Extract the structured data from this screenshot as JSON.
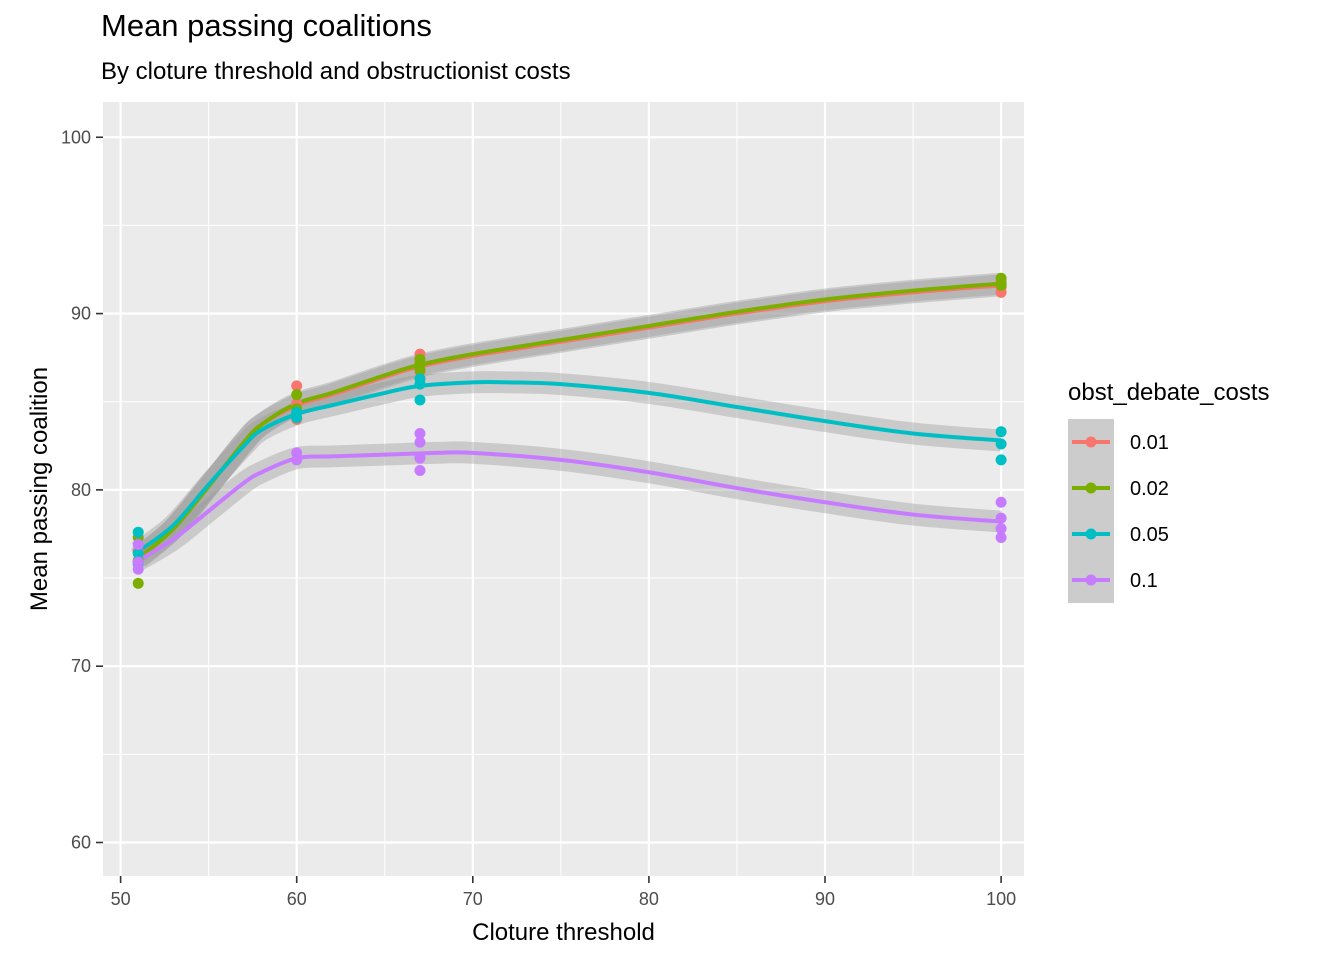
{
  "chart_data": {
    "type": "scatter",
    "title": "Mean passing coalitions",
    "subtitle": "By cloture threshold and obstructionist costs",
    "xlabel": "Cloture threshold",
    "ylabel": "Mean passing coalition",
    "xlim": [
      49,
      101.3
    ],
    "ylim": [
      58.1,
      102
    ],
    "xticks": [
      50,
      60,
      70,
      80,
      90,
      100
    ],
    "yticks": [
      60,
      70,
      80,
      90,
      100
    ],
    "grid": true,
    "legend": {
      "title": "obst_debate_costs",
      "position": "right"
    },
    "series": [
      {
        "name": "0.01",
        "color": "#F8766D",
        "points": [
          [
            51,
            76.5
          ],
          [
            51,
            75.9
          ],
          [
            60,
            85.9
          ],
          [
            60,
            84.0
          ],
          [
            60,
            84.9
          ],
          [
            67,
            87.7
          ],
          [
            67,
            86.7
          ],
          [
            67,
            87.2
          ],
          [
            100,
            91.2
          ],
          [
            100,
            91.8
          ],
          [
            100,
            91.5
          ]
        ],
        "smooth": [
          [
            51,
            76.2
          ],
          [
            53,
            77.8
          ],
          [
            55,
            80.2
          ],
          [
            57,
            82.7
          ],
          [
            58,
            83.7
          ],
          [
            60,
            84.8
          ],
          [
            62,
            85.4
          ],
          [
            65,
            86.4
          ],
          [
            67,
            87.0
          ],
          [
            70,
            87.6
          ],
          [
            75,
            88.4
          ],
          [
            80,
            89.2
          ],
          [
            85,
            90.0
          ],
          [
            90,
            90.7
          ],
          [
            95,
            91.2
          ],
          [
            100,
            91.6
          ]
        ]
      },
      {
        "name": "0.02",
        "color": "#7CAE00",
        "points": [
          [
            51,
            74.7
          ],
          [
            51,
            77.3
          ],
          [
            51,
            76.0
          ],
          [
            60,
            85.4
          ],
          [
            60,
            84.6
          ],
          [
            67,
            87.4
          ],
          [
            67,
            86.8
          ],
          [
            67,
            87.1
          ],
          [
            100,
            92.0
          ],
          [
            100,
            91.6
          ],
          [
            100,
            91.7
          ]
        ],
        "smooth": [
          [
            51,
            76.1
          ],
          [
            53,
            77.8
          ],
          [
            55,
            80.2
          ],
          [
            57,
            82.7
          ],
          [
            58,
            83.7
          ],
          [
            60,
            84.9
          ],
          [
            62,
            85.5
          ],
          [
            65,
            86.5
          ],
          [
            67,
            87.1
          ],
          [
            70,
            87.7
          ],
          [
            75,
            88.5
          ],
          [
            80,
            89.3
          ],
          [
            85,
            90.1
          ],
          [
            90,
            90.8
          ],
          [
            95,
            91.3
          ],
          [
            100,
            91.7
          ]
        ]
      },
      {
        "name": "0.05",
        "color": "#00BFC4",
        "points": [
          [
            51,
            77.6
          ],
          [
            51,
            76.4
          ],
          [
            51,
            75.8
          ],
          [
            60,
            84.1
          ],
          [
            60,
            84.4
          ],
          [
            67,
            85.1
          ],
          [
            67,
            86.0
          ],
          [
            67,
            86.3
          ],
          [
            100,
            83.3
          ],
          [
            100,
            82.6
          ],
          [
            100,
            81.7
          ]
        ],
        "smooth": [
          [
            51,
            76.5
          ],
          [
            53,
            78.0
          ],
          [
            55,
            80.3
          ],
          [
            57,
            82.5
          ],
          [
            58,
            83.4
          ],
          [
            60,
            84.3
          ],
          [
            62,
            84.8
          ],
          [
            65,
            85.5
          ],
          [
            67,
            85.9
          ],
          [
            70,
            86.1
          ],
          [
            72,
            86.1
          ],
          [
            75,
            86.0
          ],
          [
            80,
            85.5
          ],
          [
            85,
            84.7
          ],
          [
            90,
            83.9
          ],
          [
            95,
            83.2
          ],
          [
            100,
            82.8
          ]
        ]
      },
      {
        "name": "0.1",
        "color": "#C77CFF",
        "points": [
          [
            51,
            75.5
          ],
          [
            51,
            76.9
          ],
          [
            51,
            75.9
          ],
          [
            60,
            82.1
          ],
          [
            60,
            81.7
          ],
          [
            67,
            83.2
          ],
          [
            67,
            82.7
          ],
          [
            67,
            81.8
          ],
          [
            67,
            81.1
          ],
          [
            100,
            79.3
          ],
          [
            100,
            78.4
          ],
          [
            100,
            77.8
          ],
          [
            100,
            77.3
          ]
        ],
        "smooth": [
          [
            51,
            76.0
          ],
          [
            53,
            77.2
          ],
          [
            55,
            78.8
          ],
          [
            57,
            80.4
          ],
          [
            58,
            81.0
          ],
          [
            60,
            81.8
          ],
          [
            62,
            81.9
          ],
          [
            65,
            82.0
          ],
          [
            68,
            82.1
          ],
          [
            70,
            82.1
          ],
          [
            75,
            81.7
          ],
          [
            80,
            81.0
          ],
          [
            85,
            80.1
          ],
          [
            90,
            79.3
          ],
          [
            95,
            78.6
          ],
          [
            100,
            78.2
          ]
        ]
      }
    ]
  }
}
